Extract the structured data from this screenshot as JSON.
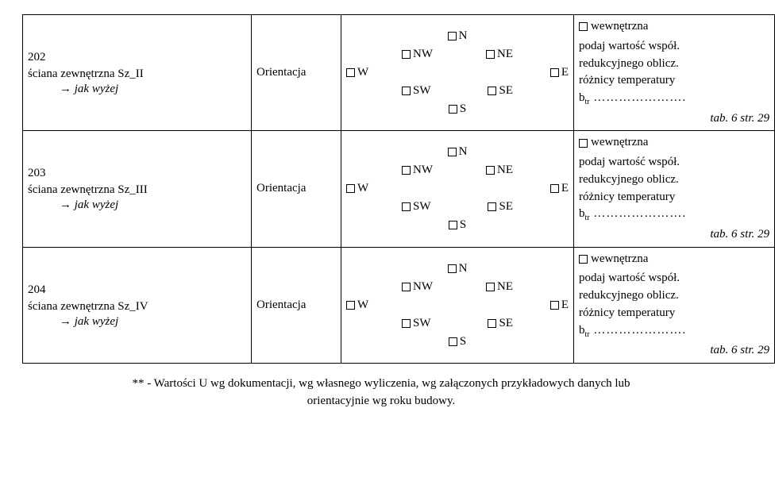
{
  "rows": [
    {
      "id": "202",
      "wall": "ściana zewnętrzna Sz_II",
      "as_above": "→ jak wyżej",
      "orientation_label": "Orientacja",
      "compass": {
        "N": "N",
        "NW": "NW",
        "NE": "NE",
        "W": "W",
        "E": "E",
        "SW": "SW",
        "SE": "SE",
        "S": "S"
      },
      "inner_label": "wewnętrzna",
      "line1": "podaj wartość współ.",
      "line2": "redukcyjnego oblicz.",
      "line3": "różnicy temperatury",
      "btr": "b",
      "btr_sub": "tr",
      "dots": "………………….",
      "tabref": "tab. 6 str. 29"
    },
    {
      "id": "203",
      "wall": "ściana zewnętrzna Sz_III",
      "as_above": "→ jak wyżej",
      "orientation_label": "Orientacja",
      "compass": {
        "N": "N",
        "NW": "NW",
        "NE": "NE",
        "W": "W",
        "E": "E",
        "SW": "SW",
        "SE": "SE",
        "S": "S"
      },
      "inner_label": "wewnętrzna",
      "line1": "podaj wartość współ.",
      "line2": "redukcyjnego oblicz.",
      "line3": "różnicy temperatury",
      "btr": "b",
      "btr_sub": "tr",
      "dots": "………………….",
      "tabref": "tab. 6 str. 29"
    },
    {
      "id": "204",
      "wall": "ściana zewnętrzna Sz_IV",
      "as_above": "→ jak wyżej",
      "orientation_label": "Orientacja",
      "compass": {
        "N": "N",
        "NW": "NW",
        "NE": "NE",
        "W": "W",
        "E": "E",
        "SW": "SW",
        "SE": "SE",
        "S": "S"
      },
      "inner_label": "wewnętrzna",
      "line1": "podaj wartość współ.",
      "line2": "redukcyjnego oblicz.",
      "line3": "różnicy temperatury",
      "btr": "b",
      "btr_sub": "tr",
      "dots": "………………….",
      "tabref": "tab. 6 str. 29"
    }
  ],
  "footnote_line1": "** - Wartości U wg dokumentacji, wg własnego wyliczenia, wg załączonych przykładowych danych  lub",
  "footnote_line2": "orientacyjnie wg roku budowy."
}
